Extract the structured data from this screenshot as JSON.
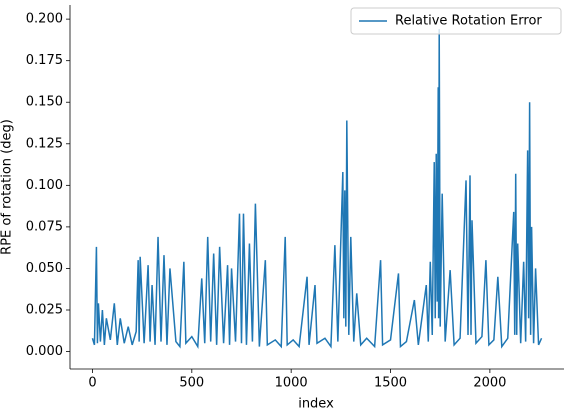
{
  "chart_data": {
    "type": "line",
    "xlabel": "index",
    "ylabel": "RPE of rotation (deg)",
    "legend": "upper right",
    "xlim": [
      -113,
      2373
    ],
    "ylim": [
      -0.0105,
      0.2085
    ],
    "xticks": [
      0,
      500,
      1000,
      1500,
      2000
    ],
    "yticks": [
      {
        "value": 0,
        "label": "0.000"
      },
      {
        "value": 0.025,
        "label": "0.025"
      },
      {
        "value": 0.05,
        "label": "0.050"
      },
      {
        "value": 0.075,
        "label": "0.075"
      },
      {
        "value": 0.1,
        "label": "0.100"
      },
      {
        "value": 0.125,
        "label": "0.125"
      },
      {
        "value": 0.15,
        "label": "0.150"
      },
      {
        "value": 0.175,
        "label": "0.175"
      },
      {
        "value": 0.2,
        "label": "0.200"
      }
    ],
    "x": [
      0,
      10,
      20,
      25,
      30,
      40,
      50,
      60,
      70,
      90,
      110,
      125,
      140,
      160,
      180,
      200,
      220,
      230,
      235,
      240,
      260,
      280,
      290,
      300,
      315,
      330,
      345,
      360,
      375,
      390,
      420,
      440,
      460,
      470,
      500,
      530,
      550,
      565,
      580,
      595,
      610,
      625,
      640,
      660,
      680,
      690,
      700,
      720,
      740,
      750,
      760,
      775,
      790,
      805,
      820,
      840,
      870,
      880,
      920,
      950,
      970,
      980,
      1010,
      1040,
      1080,
      1090,
      1120,
      1130,
      1170,
      1200,
      1220,
      1235,
      1260,
      1265,
      1270,
      1275,
      1280,
      1290,
      1300,
      1315,
      1330,
      1350,
      1380,
      1420,
      1450,
      1460,
      1500,
      1540,
      1550,
      1580,
      1620,
      1640,
      1680,
      1690,
      1700,
      1710,
      1720,
      1725,
      1730,
      1735,
      1740,
      1742,
      1745,
      1750,
      1760,
      1775,
      1800,
      1820,
      1850,
      1880,
      1890,
      1900,
      1905,
      1910,
      1930,
      1960,
      1980,
      1995,
      2020,
      2040,
      2060,
      2090,
      2120,
      2125,
      2130,
      2135,
      2140,
      2155,
      2170,
      2180,
      2190,
      2195,
      2200,
      2205,
      2210,
      2220,
      2230,
      2245,
      2260
    ],
    "series": [
      {
        "name": "Relative Rotation Error",
        "color": "#1f77b4",
        "values": [
          0.008,
          0.004,
          0.063,
          0.005,
          0.029,
          0.006,
          0.025,
          0.004,
          0.02,
          0.007,
          0.029,
          0.004,
          0.02,
          0.005,
          0.015,
          0.004,
          0.012,
          0.055,
          0.006,
          0.057,
          0.005,
          0.052,
          0.006,
          0.04,
          0.004,
          0.069,
          0.006,
          0.058,
          0.004,
          0.05,
          0.006,
          0.003,
          0.054,
          0.005,
          0.009,
          0.003,
          0.044,
          0.005,
          0.069,
          0.006,
          0.059,
          0.004,
          0.063,
          0.005,
          0.052,
          0.004,
          0.05,
          0.006,
          0.083,
          0.005,
          0.083,
          0.004,
          0.065,
          0.006,
          0.089,
          0.003,
          0.055,
          0.004,
          0.007,
          0.003,
          0.069,
          0.004,
          0.007,
          0.003,
          0.045,
          0.004,
          0.04,
          0.005,
          0.008,
          0.003,
          0.064,
          0.006,
          0.108,
          0.02,
          0.097,
          0.015,
          0.139,
          0.01,
          0.069,
          0.006,
          0.035,
          0.004,
          0.008,
          0.003,
          0.055,
          0.004,
          0.007,
          0.047,
          0.003,
          0.006,
          0.031,
          0.004,
          0.04,
          0.006,
          0.054,
          0.01,
          0.114,
          0.02,
          0.119,
          0.03,
          0.159,
          0.02,
          0.194,
          0.015,
          0.095,
          0.006,
          0.049,
          0.004,
          0.008,
          0.103,
          0.01,
          0.106,
          0.01,
          0.079,
          0.005,
          0.009,
          0.055,
          0.004,
          0.007,
          0.045,
          0.003,
          0.008,
          0.084,
          0.01,
          0.107,
          0.01,
          0.065,
          0.005,
          0.054,
          0.006,
          0.121,
          0.02,
          0.15,
          0.01,
          0.075,
          0.005,
          0.05,
          0.004,
          0.008
        ]
      }
    ]
  }
}
